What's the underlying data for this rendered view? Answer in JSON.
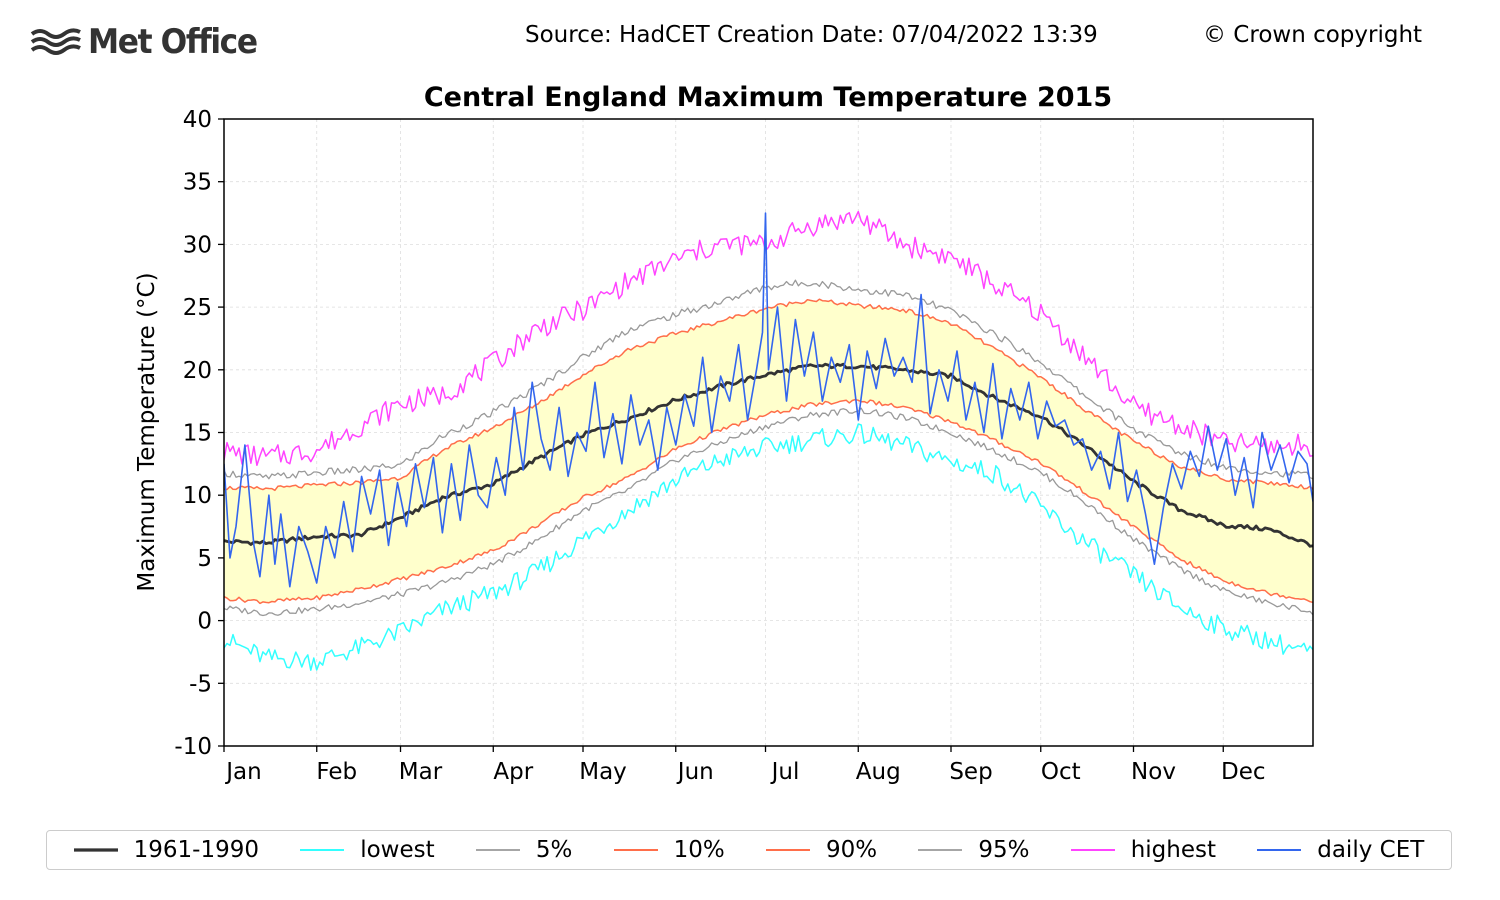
{
  "header": {
    "logo_text": "Met Office",
    "logo_icon": "met-office-wave-icon",
    "source_text": "Source: HadCET  Creation Date: 07/04/2022 13:39",
    "copyright_text": "© Crown copyright"
  },
  "colors": {
    "normal": "#333333",
    "lowest": "#33ffff",
    "p5": "#999999",
    "p10": "#ff6e4a",
    "p90": "#ff6e4a",
    "p95": "#999999",
    "highest": "#ff44ff",
    "daily": "#3366ee",
    "band": "#ffffcc",
    "grid": "#dddddd"
  },
  "chart_data": {
    "type": "line",
    "title": "Central England Maximum Temperature 2015",
    "xlabel": "",
    "ylabel": "Maximum Temperature (°C)",
    "ylim": [
      -10,
      40
    ],
    "xlim": [
      1,
      365
    ],
    "grid": true,
    "legend_placement": "bottom",
    "y_ticks": [
      "40",
      "35",
      "30",
      "25",
      "20",
      "15",
      "10",
      "5",
      "0",
      "-5",
      "-10"
    ],
    "x_ticks": [
      {
        "label": "Jan",
        "day": 1
      },
      {
        "label": "Feb",
        "day": 32
      },
      {
        "label": "Mar",
        "day": 60
      },
      {
        "label": "Apr",
        "day": 91
      },
      {
        "label": "May",
        "day": 121
      },
      {
        "label": "Jun",
        "day": 152
      },
      {
        "label": "Jul",
        "day": 182
      },
      {
        "label": "Aug",
        "day": 213
      },
      {
        "label": "Sep",
        "day": 244
      },
      {
        "label": "Oct",
        "day": 274
      },
      {
        "label": "Nov",
        "day": 305
      },
      {
        "label": "Dec",
        "day": 335
      }
    ],
    "band_between": [
      "10%",
      "90%"
    ],
    "series": [
      {
        "name": "1961-1990",
        "key": "normal",
        "x": [
          1,
          15,
          32,
          46,
          60,
          74,
          91,
          105,
          121,
          136,
          152,
          167,
          182,
          197,
          213,
          228,
          244,
          259,
          274,
          289,
          305,
          320,
          335,
          350,
          365
        ],
        "values": [
          6.3,
          6.2,
          6.7,
          6.8,
          8.2,
          9.8,
          10.9,
          12.8,
          14.8,
          16.1,
          17.6,
          18.7,
          19.6,
          20.3,
          20.3,
          20.0,
          19.5,
          17.7,
          16.3,
          13.9,
          11.1,
          8.9,
          7.6,
          7.3,
          6.0
        ],
        "width": 2.8
      },
      {
        "name": "lowest",
        "key": "lowest",
        "x": [
          1,
          15,
          32,
          46,
          60,
          74,
          91,
          105,
          121,
          136,
          152,
          167,
          182,
          197,
          213,
          228,
          244,
          259,
          274,
          289,
          305,
          320,
          335,
          350,
          365
        ],
        "values": [
          -1.5,
          -3.0,
          -3.2,
          -2.2,
          -0.9,
          0.8,
          2.2,
          3.8,
          6.5,
          8.8,
          11.2,
          12.8,
          13.8,
          14.4,
          14.9,
          14.0,
          12.7,
          11.7,
          9.0,
          6.2,
          3.6,
          1.1,
          -0.6,
          -1.6,
          -2.6
        ],
        "width": 1.5
      },
      {
        "name": "5%",
        "key": "p5",
        "x": [
          1,
          15,
          32,
          46,
          60,
          74,
          91,
          105,
          121,
          136,
          152,
          167,
          182,
          197,
          213,
          228,
          244,
          259,
          274,
          289,
          305,
          320,
          335,
          350,
          365
        ],
        "values": [
          1.0,
          0.6,
          0.9,
          1.4,
          2.1,
          3.0,
          4.5,
          6.3,
          8.8,
          10.4,
          12.8,
          14.2,
          15.5,
          16.4,
          16.8,
          16.2,
          15.0,
          13.5,
          11.8,
          9.4,
          6.5,
          4.2,
          2.4,
          1.4,
          0.7
        ],
        "width": 1.3
      },
      {
        "name": "10%",
        "key": "p10",
        "x": [
          1,
          15,
          32,
          46,
          60,
          74,
          91,
          105,
          121,
          136,
          152,
          167,
          182,
          197,
          213,
          228,
          244,
          259,
          274,
          289,
          305,
          320,
          335,
          350,
          365
        ],
        "values": [
          1.8,
          1.5,
          1.8,
          2.5,
          3.3,
          4.2,
          5.6,
          7.5,
          9.8,
          11.4,
          13.7,
          15.2,
          16.4,
          17.2,
          17.6,
          17.0,
          15.9,
          14.3,
          12.6,
          10.2,
          7.5,
          5.0,
          3.2,
          2.2,
          1.6
        ],
        "width": 1.5
      },
      {
        "name": "90%",
        "key": "p90",
        "x": [
          1,
          15,
          32,
          46,
          60,
          74,
          91,
          105,
          121,
          136,
          152,
          167,
          182,
          197,
          213,
          228,
          244,
          259,
          274,
          289,
          305,
          320,
          335,
          350,
          365
        ],
        "values": [
          10.6,
          10.5,
          10.8,
          11.0,
          11.4,
          13.6,
          15.4,
          17.2,
          19.6,
          21.6,
          22.9,
          23.9,
          24.9,
          25.6,
          25.1,
          24.8,
          23.7,
          21.6,
          19.4,
          16.8,
          14.3,
          12.4,
          11.3,
          11.0,
          10.6
        ],
        "width": 1.5
      },
      {
        "name": "95%",
        "key": "p95",
        "x": [
          1,
          15,
          32,
          46,
          60,
          74,
          91,
          105,
          121,
          136,
          152,
          167,
          182,
          197,
          213,
          228,
          244,
          259,
          274,
          289,
          305,
          320,
          335,
          350,
          365
        ],
        "values": [
          11.8,
          11.4,
          11.8,
          12.0,
          12.4,
          14.7,
          16.6,
          18.5,
          21.0,
          23.2,
          24.4,
          25.4,
          26.6,
          27.0,
          26.4,
          26.0,
          24.7,
          22.8,
          20.6,
          17.9,
          15.3,
          13.4,
          12.3,
          11.8,
          11.6
        ],
        "width": 1.3
      },
      {
        "name": "highest",
        "key": "highest",
        "x": [
          1,
          15,
          32,
          46,
          60,
          74,
          91,
          105,
          121,
          136,
          152,
          167,
          182,
          197,
          213,
          228,
          244,
          259,
          274,
          289,
          305,
          320,
          335,
          350,
          365
        ],
        "values": [
          13.5,
          13.0,
          13.6,
          15.5,
          17.3,
          18.0,
          20.5,
          23.2,
          24.8,
          27.0,
          28.8,
          30.0,
          30.0,
          31.5,
          32.2,
          30.0,
          29.0,
          26.7,
          24.5,
          21.0,
          17.0,
          15.6,
          14.2,
          13.9,
          14.0
        ],
        "width": 1.5
      },
      {
        "name": "daily CET",
        "key": "daily",
        "x": [
          1,
          3,
          5,
          8,
          11,
          13,
          16,
          18,
          20,
          23,
          26,
          29,
          32,
          35,
          38,
          41,
          44,
          47,
          50,
          53,
          56,
          59,
          62,
          65,
          68,
          71,
          74,
          77,
          80,
          83,
          86,
          89,
          92,
          95,
          98,
          101,
          104,
          107,
          110,
          113,
          116,
          119,
          122,
          125,
          128,
          131,
          134,
          137,
          140,
          143,
          146,
          149,
          152,
          155,
          158,
          161,
          164,
          167,
          170,
          173,
          176,
          179,
          181,
          182,
          183,
          186,
          189,
          192,
          195,
          198,
          201,
          204,
          207,
          210,
          213,
          216,
          219,
          222,
          225,
          228,
          231,
          234,
          237,
          240,
          243,
          246,
          249,
          252,
          255,
          258,
          261,
          264,
          267,
          270,
          273,
          276,
          279,
          282,
          285,
          288,
          291,
          294,
          297,
          300,
          303,
          306,
          309,
          312,
          315,
          318,
          321,
          324,
          327,
          330,
          333,
          336,
          339,
          342,
          345,
          348,
          351,
          354,
          357,
          360,
          363,
          365
        ],
        "values": [
          12.5,
          5.0,
          7.5,
          14.0,
          6.0,
          3.5,
          10.0,
          4.5,
          8.5,
          2.7,
          7.5,
          5.5,
          3.0,
          7.5,
          5.0,
          9.5,
          5.5,
          11.5,
          8.5,
          12.0,
          6.0,
          11.0,
          7.5,
          12.5,
          9.0,
          13.0,
          7.0,
          12.5,
          8.0,
          14.0,
          10.0,
          9.0,
          13.0,
          10.0,
          17.0,
          12.0,
          19.0,
          14.5,
          12.0,
          17.0,
          11.5,
          15.0,
          13.5,
          19.0,
          13.0,
          16.5,
          12.5,
          18.0,
          14.0,
          16.0,
          12.0,
          17.0,
          14.0,
          18.0,
          15.5,
          21.0,
          15.0,
          19.5,
          17.5,
          22.0,
          16.0,
          20.0,
          23.0,
          32.5,
          20.0,
          25.0,
          17.5,
          24.0,
          19.5,
          23.0,
          17.5,
          21.0,
          19.0,
          22.0,
          16.0,
          21.5,
          18.5,
          22.5,
          19.5,
          21.0,
          19.0,
          26.0,
          16.5,
          20.0,
          17.5,
          21.5,
          16.0,
          19.0,
          15.0,
          20.5,
          14.5,
          18.5,
          16.0,
          19.0,
          14.5,
          17.5,
          15.5,
          16.0,
          14.0,
          14.5,
          12.0,
          13.5,
          10.5,
          15.0,
          9.5,
          12.0,
          8.5,
          4.5,
          9.0,
          12.5,
          10.5,
          13.5,
          11.5,
          15.5,
          12.0,
          14.5,
          10.0,
          13.0,
          9.0,
          15.0,
          12.0,
          14.0,
          11.0,
          13.5,
          12.5,
          9.5
        ],
        "width": 1.6
      }
    ]
  },
  "legend": [
    {
      "key": "normal",
      "label": "1961-1990"
    },
    {
      "key": "lowest",
      "label": "lowest"
    },
    {
      "key": "p5",
      "label": "5%"
    },
    {
      "key": "p10",
      "label": "10%"
    },
    {
      "key": "p90",
      "label": "90%"
    },
    {
      "key": "p95",
      "label": "95%"
    },
    {
      "key": "highest",
      "label": "highest"
    },
    {
      "key": "daily",
      "label": "daily CET"
    }
  ]
}
